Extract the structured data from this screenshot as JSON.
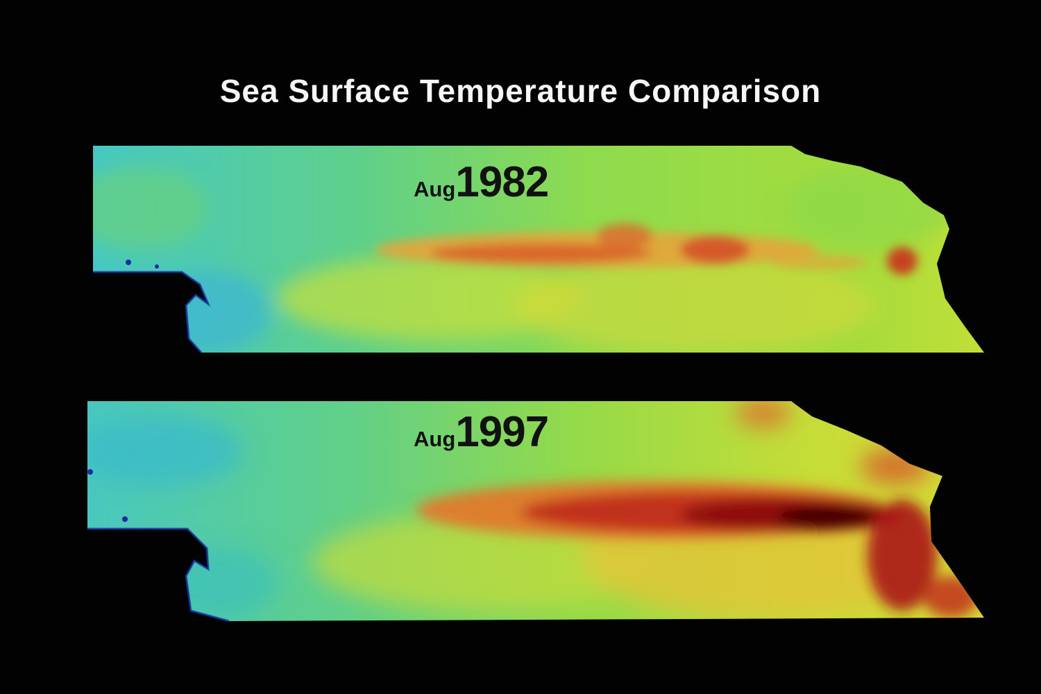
{
  "title": "Sea Surface Temperature Comparison",
  "panels": [
    {
      "month": "Aug",
      "year": "1982"
    },
    {
      "month": "Aug",
      "year": "1997"
    }
  ],
  "colors": {
    "background": "#000000",
    "cool": "#3fc7c9",
    "mid": "#7fdc55",
    "warm": "#e8e13a",
    "hot": "#e0501e",
    "extreme": "#8a0000",
    "land": "#000000"
  }
}
